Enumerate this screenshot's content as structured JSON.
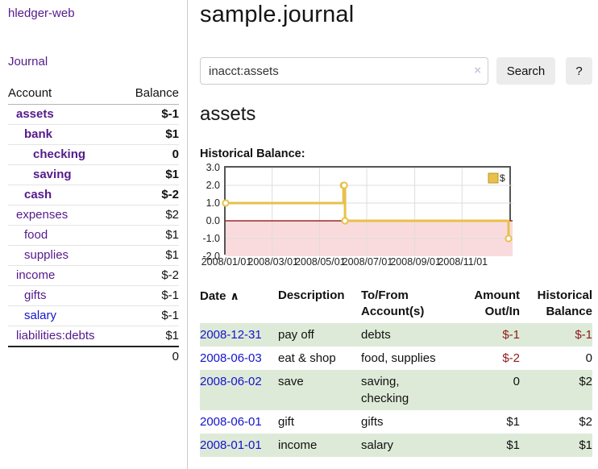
{
  "app_colors": {
    "purple_link": "#551a8b",
    "blue_link": "#1414cc",
    "negative_red": "#8c1b1b",
    "negative_soft": "#b97f7f",
    "row_stripe_green": "#deead8",
    "button_gray": "#ececec"
  },
  "sidebar": {
    "brand": "hledger-web",
    "journal_link": "Journal",
    "accounts_table": {
      "account_header": "Account",
      "balance_header": "Balance",
      "rows": [
        {
          "name": "assets",
          "balance": "$-1"
        },
        {
          "name": "bank",
          "balance": "$1"
        },
        {
          "name": "checking",
          "balance": "0"
        },
        {
          "name": "saving",
          "balance": "$1"
        },
        {
          "name": "cash",
          "balance": "$-2"
        },
        {
          "name": "expenses",
          "balance": "$2"
        },
        {
          "name": "food",
          "balance": "$1"
        },
        {
          "name": "supplies",
          "balance": "$1"
        },
        {
          "name": "income",
          "balance": "$-2"
        },
        {
          "name": "gifts",
          "balance": "$-1"
        },
        {
          "name": "salary",
          "balance": "$-1"
        },
        {
          "name": "liabilities:debts",
          "balance": "$1"
        }
      ],
      "total": "0"
    }
  },
  "main": {
    "title": "sample.journal",
    "search": {
      "value": "inacct:assets",
      "clear_icon": "×",
      "search_button": "Search",
      "help_button": "?"
    },
    "account_heading": "assets",
    "chart_title": "Historical Balance:"
  },
  "chart_data": {
    "type": "line",
    "step": true,
    "title": "Historical Balance",
    "series": [
      {
        "name": "$",
        "points": [
          {
            "date": "2008-01-01",
            "value": 1
          },
          {
            "date": "2008-06-01",
            "value": 2
          },
          {
            "date": "2008-06-02",
            "value": 2
          },
          {
            "date": "2008-06-03",
            "value": 0
          },
          {
            "date": "2008-12-31",
            "value": -1
          }
        ]
      }
    ],
    "x_range": [
      "2008-01-01",
      "2008-12-31"
    ],
    "x_tick_labels": [
      "2008/01/01",
      "2008/03/01",
      "2008/05/01",
      "2008/07/01",
      "2008/09/01",
      "2008/11/01"
    ],
    "y_ticks": [
      3.0,
      2.0,
      1.0,
      0.0,
      -1.0,
      -2.0
    ],
    "ylim": [
      -2.0,
      3.0
    ],
    "legend": {
      "label": "$",
      "position": "top-right"
    },
    "grid": true,
    "negative_region_shaded": true,
    "colors": {
      "line": "#e7c14b",
      "marker_fill": "#ffffff",
      "negative_fill": "#fadbdd",
      "zero_line": "#8b0000",
      "grid": "#dddddd",
      "border": "#555555",
      "legend_swatch_border": "#b8962e"
    }
  },
  "transactions": {
    "headers": {
      "date": "Date",
      "sort_icon": "∧",
      "description": "Description",
      "to_from": "To/From\nAccount(s)",
      "amount": "Amount\nOut/In",
      "balance": "Historical\nBalance"
    },
    "rows": [
      {
        "date": "2008-12-31",
        "description": "pay off",
        "accounts": "debts",
        "amount": "$-1",
        "balance": "$-1"
      },
      {
        "date": "2008-06-03",
        "description": "eat & shop",
        "accounts": "food, supplies",
        "amount": "$-2",
        "balance": "0"
      },
      {
        "date": "2008-06-02",
        "description": "save",
        "accounts": "saving,\nchecking",
        "amount": "0",
        "balance": "$2"
      },
      {
        "date": "2008-06-01",
        "description": "gift",
        "accounts": "gifts",
        "amount": "$1",
        "balance": "$2"
      },
      {
        "date": "2008-01-01",
        "description": "income",
        "accounts": "salary",
        "amount": "$1",
        "balance": "$1"
      }
    ]
  }
}
